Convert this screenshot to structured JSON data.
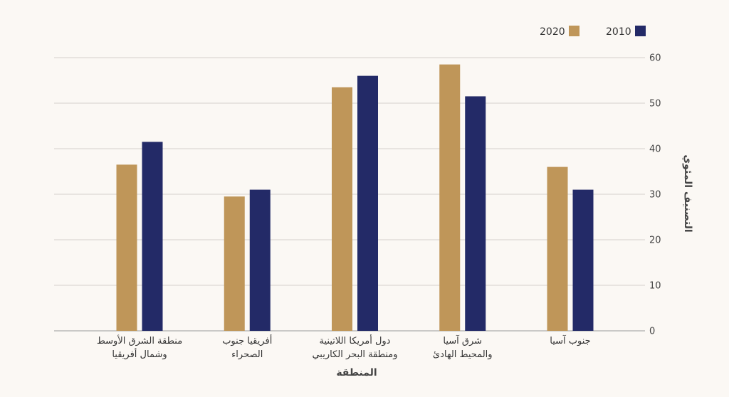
{
  "chart_data": {
    "type": "bar",
    "title": "",
    "xlabel": "المنطقة",
    "ylabel": "التصنيف المئوي",
    "ylim": [
      0,
      60
    ],
    "yticks": [
      0,
      10,
      20,
      30,
      40,
      50,
      60
    ],
    "grid": true,
    "legend_position": "top-right",
    "categories": [
      [
        "جنوب آسيا"
      ],
      [
        "شرق آسيا",
        "والمحيط الهادئ"
      ],
      [
        "دول أمريكا اللاتينية",
        "ومنطقة البحر الكاريبي"
      ],
      [
        "أفريقيا جنوب",
        "الصحراء"
      ],
      [
        "منطقة الشرق الأوسط",
        "وشمال أفريقيا"
      ]
    ],
    "series": [
      {
        "name": "2020",
        "color": "#bf9659",
        "values": [
          36,
          58.5,
          53.5,
          29.5,
          36.5
        ]
      },
      {
        "name": "2010",
        "color": "#232a67",
        "values": [
          31,
          51.5,
          56,
          31,
          41.5
        ]
      }
    ]
  }
}
